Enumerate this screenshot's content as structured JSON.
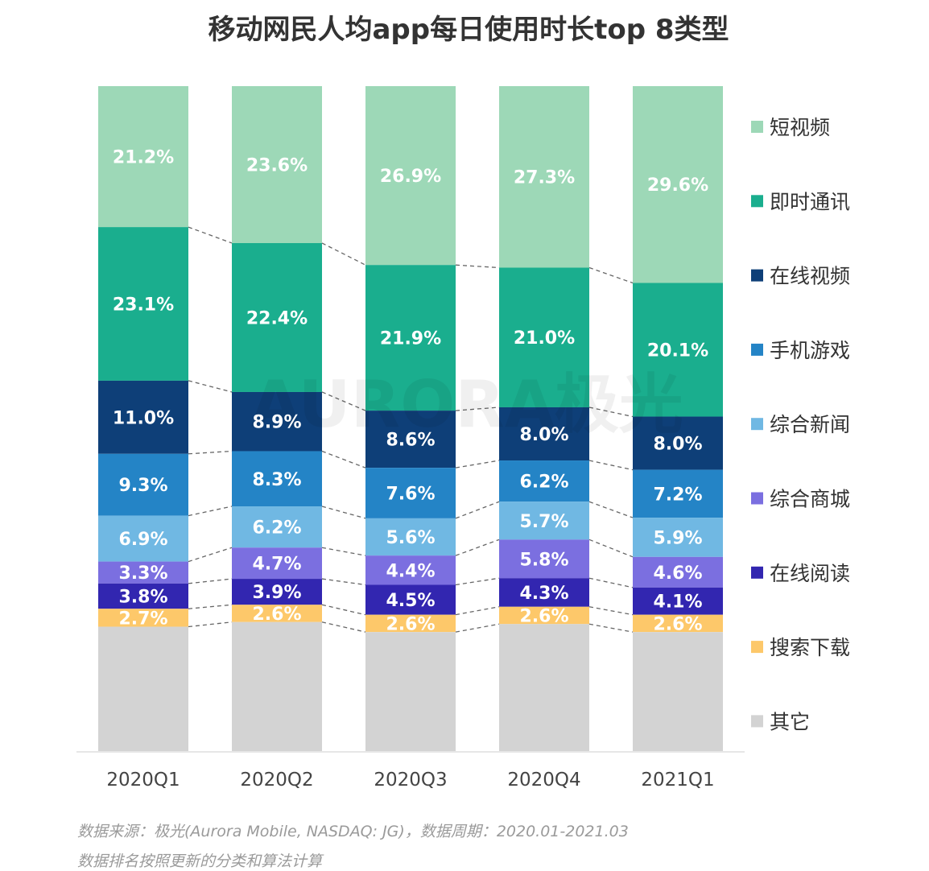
{
  "chart_data": {
    "type": "bar",
    "stacked": true,
    "title": "移动网民人均app每日使用时长top 8类型",
    "categories": [
      "2020Q1",
      "2020Q2",
      "2020Q3",
      "2020Q4",
      "2021Q1"
    ],
    "ylim": [
      0,
      100
    ],
    "unit": "%",
    "grid": false,
    "legend_position": "right",
    "series": [
      {
        "name": "短视频",
        "color": "#9dd8b7",
        "values": [
          21.2,
          23.6,
          26.9,
          27.3,
          29.6
        ],
        "labels": [
          "21.2%",
          "23.6%",
          "26.9%",
          "27.3%",
          "29.6%"
        ]
      },
      {
        "name": "即时通讯",
        "color": "#1aae8e",
        "values": [
          23.1,
          22.4,
          21.9,
          21.0,
          20.1
        ],
        "labels": [
          "23.1%",
          "22.4%",
          "21.9%",
          "21.0%",
          "20.1%"
        ]
      },
      {
        "name": "在线视频",
        "color": "#0e3f78",
        "values": [
          11.0,
          8.9,
          8.6,
          8.0,
          8.0
        ],
        "labels": [
          "11.0%",
          "8.9%",
          "8.6%",
          "8.0%",
          "8.0%"
        ]
      },
      {
        "name": "手机游戏",
        "color": "#2484c6",
        "values": [
          9.3,
          8.3,
          7.6,
          6.2,
          7.2
        ],
        "labels": [
          "9.3%",
          "8.3%",
          "7.6%",
          "6.2%",
          "7.2%"
        ]
      },
      {
        "name": "综合新闻",
        "color": "#70b8e3",
        "values": [
          6.9,
          6.2,
          5.6,
          5.7,
          5.9
        ],
        "labels": [
          "6.9%",
          "6.2%",
          "5.6%",
          "5.7%",
          "5.9%"
        ]
      },
      {
        "name": "综合商城",
        "color": "#7b6fe0",
        "values": [
          3.3,
          4.7,
          4.4,
          5.8,
          4.6
        ],
        "labels": [
          "3.3%",
          "4.7%",
          "4.4%",
          "5.8%",
          "4.6%"
        ]
      },
      {
        "name": "在线阅读",
        "color": "#3226b0",
        "values": [
          3.8,
          3.9,
          4.5,
          4.3,
          4.1
        ],
        "labels": [
          "3.8%",
          "3.9%",
          "4.5%",
          "4.3%",
          "4.1%"
        ]
      },
      {
        "name": "搜索下载",
        "color": "#fdc86a",
        "values": [
          2.7,
          2.6,
          2.6,
          2.6,
          2.6
        ],
        "labels": [
          "2.7%",
          "2.6%",
          "2.6%",
          "2.6%",
          "2.6%"
        ]
      },
      {
        "name": "其它",
        "color": "#d3d3d3",
        "values": [
          18.7,
          19.4,
          17.9,
          19.1,
          17.9
        ],
        "labels": []
      }
    ]
  },
  "watermark": "AURORA极光",
  "footer": {
    "source": "数据来源：极光(Aurora Mobile, NASDAQ: JG)，数据周期：2020.01-2021.03",
    "note": "数据排名按照更新的分类和算法计算"
  }
}
